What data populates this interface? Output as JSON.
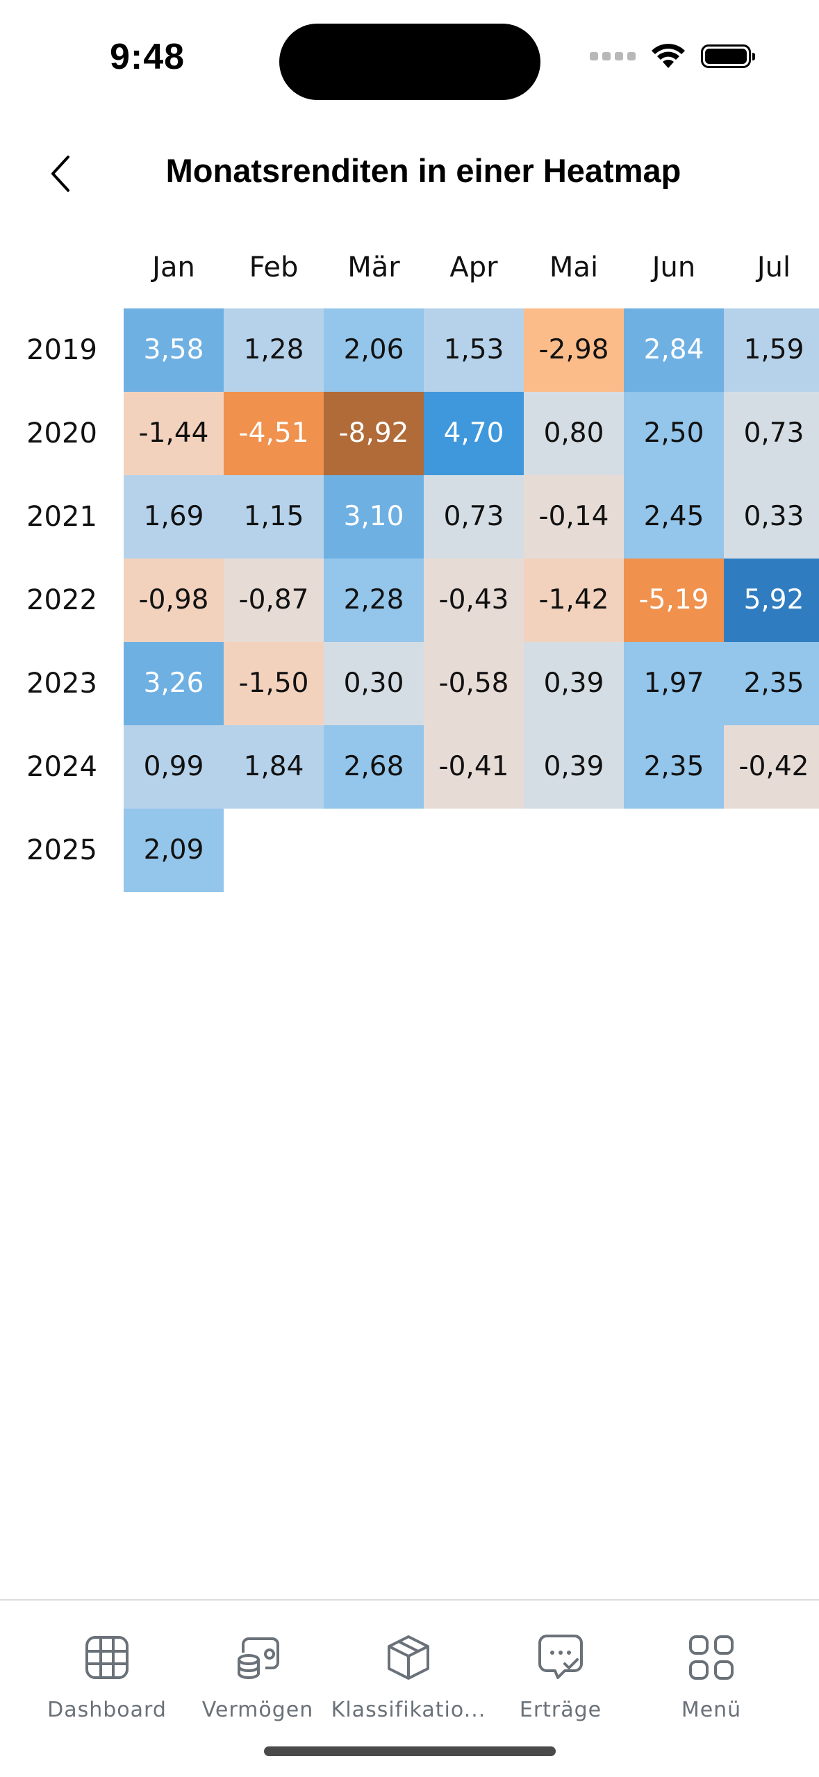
{
  "status_bar": {
    "time": "9:48"
  },
  "header": {
    "title": "Monatsrenditen in einer Heatmap",
    "back_icon": "chevron-left-icon"
  },
  "heatmap": {
    "months": [
      "Jan",
      "Feb",
      "Mär",
      "Apr",
      "Mai",
      "Jun",
      "Jul"
    ],
    "years": [
      "2019",
      "2020",
      "2021",
      "2022",
      "2023",
      "2024",
      "2025"
    ],
    "values": [
      [
        "3,58",
        "1,28",
        "2,06",
        "1,53",
        "-2,98",
        "2,84",
        "1,59"
      ],
      [
        "-1,44",
        "-4,51",
        "-8,92",
        "4,70",
        "0,80",
        "2,50",
        "0,73"
      ],
      [
        "1,69",
        "1,15",
        "3,10",
        "0,73",
        "-0,14",
        "2,45",
        "0,33"
      ],
      [
        "-0,98",
        "-0,87",
        "2,28",
        "-0,43",
        "-1,42",
        "-5,19",
        "5,92"
      ],
      [
        "3,26",
        "-1,50",
        "0,30",
        "-0,58",
        "0,39",
        "1,97",
        "2,35"
      ],
      [
        "0,99",
        "1,84",
        "2,68",
        "-0,41",
        "0,39",
        "2,35",
        "-0,42"
      ],
      [
        "2,09"
      ]
    ],
    "colors": {
      "strong_positive": "#2f7dc0",
      "positive_high": "#3f97dc",
      "positive": "#6fb0e3",
      "positive_mid": "#94c5ea",
      "positive_low": "#b6d2ea",
      "neutral": "#d5dde4",
      "negative_low": "#e7dbd5",
      "negative": "#f2d2bd",
      "negative_mid": "#fbbc8a",
      "negative_high": "#f0914e",
      "strong_negative": "#b06b38"
    }
  },
  "tab_bar": {
    "items": [
      {
        "label": "Dashboard",
        "icon": "grid-icon"
      },
      {
        "label": "Vermögen",
        "icon": "coins-icon"
      },
      {
        "label": "Klassifikatio...",
        "icon": "cube-icon"
      },
      {
        "label": "Erträge",
        "icon": "message-check-icon"
      },
      {
        "label": "Menü",
        "icon": "apps-icon"
      }
    ]
  }
}
